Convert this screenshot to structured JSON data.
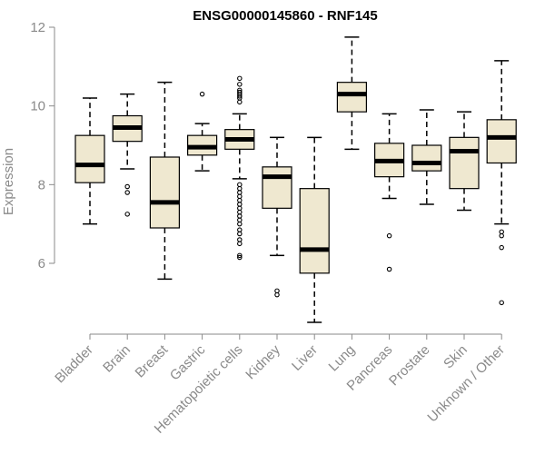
{
  "chart_data": {
    "type": "boxplot",
    "title": "ENSG00000145860 - RNF145",
    "xlabel": "",
    "ylabel": "Expression",
    "ylim": [
      4.5,
      12
    ],
    "yticks": [
      6,
      8,
      10,
      12
    ],
    "grid": false,
    "legend": "none",
    "box_color": "#efe8d0",
    "categories": [
      "Bladder",
      "Brain",
      "Breast",
      "Gastric",
      "Hematopoietic cells",
      "Kidney",
      "Liver",
      "Lung",
      "Pancreas",
      "Prostate",
      "Skin",
      "Unknown / Other"
    ],
    "boxes": [
      {
        "category": "Bladder",
        "whisker_low": 7.0,
        "q1": 8.05,
        "median": 8.5,
        "q3": 9.25,
        "whisker_high": 10.2,
        "outliers": []
      },
      {
        "category": "Brain",
        "whisker_low": 8.4,
        "q1": 9.1,
        "median": 9.45,
        "q3": 9.75,
        "whisker_high": 10.3,
        "outliers": [
          7.25,
          7.8,
          7.95
        ]
      },
      {
        "category": "Breast",
        "whisker_low": 5.6,
        "q1": 6.9,
        "median": 7.55,
        "q3": 8.7,
        "whisker_high": 10.6,
        "outliers": []
      },
      {
        "category": "Gastric",
        "whisker_low": 8.35,
        "q1": 8.75,
        "median": 8.95,
        "q3": 9.25,
        "whisker_high": 9.55,
        "outliers": [
          10.3
        ]
      },
      {
        "category": "Hematopoietic cells",
        "whisker_low": 8.15,
        "q1": 8.9,
        "median": 9.15,
        "q3": 9.4,
        "whisker_high": 9.8,
        "outliers": [
          10.7,
          10.55,
          10.4,
          10.35,
          10.3,
          10.25,
          10.2,
          10.1,
          8.0,
          7.9,
          7.8,
          7.7,
          7.6,
          7.5,
          7.4,
          7.3,
          7.2,
          7.1,
          7.0,
          6.85,
          6.75,
          6.6,
          6.5,
          6.2,
          6.15
        ]
      },
      {
        "category": "Kidney",
        "whisker_low": 6.2,
        "q1": 7.4,
        "median": 8.2,
        "q3": 8.45,
        "whisker_high": 9.2,
        "outliers": [
          5.2,
          5.3
        ]
      },
      {
        "category": "Liver",
        "whisker_low": 4.5,
        "q1": 5.75,
        "median": 6.35,
        "q3": 7.9,
        "whisker_high": 9.2,
        "outliers": []
      },
      {
        "category": "Lung",
        "whisker_low": 8.9,
        "q1": 9.85,
        "median": 10.3,
        "q3": 10.6,
        "whisker_high": 11.75,
        "outliers": []
      },
      {
        "category": "Pancreas",
        "whisker_low": 7.65,
        "q1": 8.2,
        "median": 8.6,
        "q3": 9.05,
        "whisker_high": 9.8,
        "outliers": [
          6.7,
          5.85
        ]
      },
      {
        "category": "Prostate",
        "whisker_low": 7.5,
        "q1": 8.35,
        "median": 8.55,
        "q3": 9.0,
        "whisker_high": 9.9,
        "outliers": []
      },
      {
        "category": "Skin",
        "whisker_low": 7.35,
        "q1": 7.9,
        "median": 8.85,
        "q3": 9.2,
        "whisker_high": 9.85,
        "outliers": []
      },
      {
        "category": "Unknown / Other",
        "whisker_low": 7.0,
        "q1": 8.55,
        "median": 9.2,
        "q3": 9.65,
        "whisker_high": 11.15,
        "outliers": [
          6.8,
          6.7,
          6.4,
          5.0
        ]
      }
    ]
  }
}
